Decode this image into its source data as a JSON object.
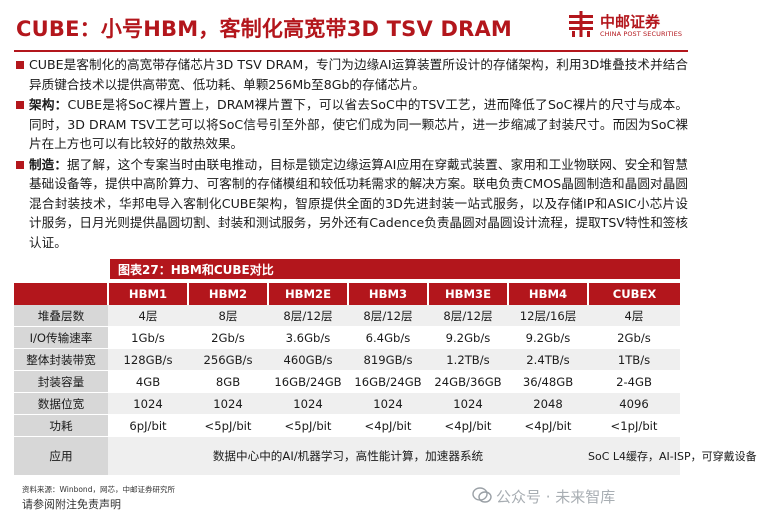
{
  "header": {
    "title": "CUBE：小号HBM，客制化高宽带3D TSV DRAM",
    "logo_cn": "中邮证券",
    "logo_en": "CHINA POST SECURITIES"
  },
  "paragraphs": [
    {
      "keyword": "",
      "text": "CUBE是客制化的高宽带存储芯片3D TSV DRAM，专门为边缘AI运算装置所设计的存储架构，利用3D堆叠技术并结合异质键合技术以提供高带宽、低功耗、单颗256Mb至8Gb的存储芯片。"
    },
    {
      "keyword": "架构：",
      "text": "CUBE是将SoC裸片置上，DRAM裸片置下，可以省去SoC中的TSV工艺，进而降低了SoC裸片的尺寸与成本。同时，3D DRAM TSV工艺可以将SoC信号引至外部，使它们成为同一颗芯片，进一步缩减了封装尺寸。而因为SoC裸片在上方也可以有比较好的散热效果。"
    },
    {
      "keyword": "制造：",
      "text": "据了解，这个专案当时由联电推动，目标是锁定边缘运算AI应用在穿戴式装置、家用和工业物联网、安全和智慧基础设备等，提供中高阶算力、可客制的存储模组和较低功耗需求的解决方案。联电负责CMOS晶圆制造和晶圆对晶圆混合封装技术，华邦电导入客制化CUBE架构，智原提供全面的3D先进封装一站式服务，以及存储IP和ASIC小芯片设计服务，日月光则提供晶圆切割、封装和测试服务，另外还有Cadence负责晶圆对晶圆设计流程，提取TSV特性和签核认证。"
    }
  ],
  "figure": {
    "title": "图表27：HBM和CUBE对比",
    "columns": [
      "",
      "HBM1",
      "HBM2",
      "HBM2E",
      "HBM3",
      "HBM3E",
      "HBM4",
      "CUBEX"
    ],
    "rows": [
      {
        "label": "堆叠层数",
        "values": [
          "4层",
          "8层",
          "8层/12层",
          "8层/12层",
          "8层/12层",
          "12层/16层",
          "4层"
        ]
      },
      {
        "label": "I/O传输速率",
        "values": [
          "1Gb/s",
          "2Gb/s",
          "3.6Gb/s",
          "6.4Gb/s",
          "9.2Gb/s",
          "9.2Gb/s",
          "2Gb/s"
        ]
      },
      {
        "label": "整体封装带宽",
        "values": [
          "128GB/s",
          "256GB/s",
          "460GB/s",
          "819GB/s",
          "1.2TB/s",
          "2.4TB/s",
          "1TB/s"
        ]
      },
      {
        "label": "封装容量",
        "values": [
          "4GB",
          "8GB",
          "16GB/24GB",
          "16GB/24GB",
          "24GB/36GB",
          "36/48GB",
          "2-4GB"
        ]
      },
      {
        "label": "数据位宽",
        "values": [
          "1024",
          "1024",
          "1024",
          "1024",
          "1024",
          "2048",
          "4096"
        ]
      },
      {
        "label": "功耗",
        "values": [
          "6pJ/bit",
          "<5pJ/bit",
          "<5pJ/bit",
          "<4pJ/bit",
          "<4pJ/bit",
          "<4pJ/bit",
          "<1pJ/bit"
        ]
      }
    ],
    "app_row": {
      "label": "应用",
      "hbm_text": "数据中心中的AI/机器学习，高性能计算，加速器系统",
      "cube_text": "SoC L4缓存，AI-ISP，可穿戴设备"
    }
  },
  "source": "资料来源：Winbond，网芯，中邮证券研究所",
  "disclaimer": "请参阅附注免责声明",
  "watermark": "公众号 · 未来智库",
  "colors": {
    "accent": "#b3161c",
    "label_bg": "#d7d7d7",
    "row_alt": "#efefef"
  }
}
